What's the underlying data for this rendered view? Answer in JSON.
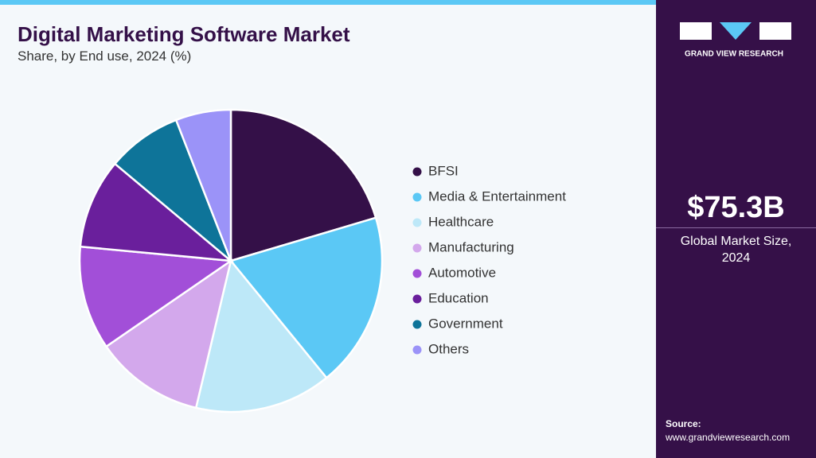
{
  "chart_data": {
    "type": "pie",
    "title": "Digital Marketing Software Market",
    "subtitle": "Share, by End use, 2024 (%)",
    "categories": [
      "BFSI",
      "Media & Entertainment",
      "Healthcare",
      "Manufacturing",
      "Automotive",
      "Education",
      "Government",
      "Others"
    ],
    "values": [
      20.4,
      18.7,
      14.6,
      11.7,
      11.1,
      9.6,
      8.0,
      5.9
    ],
    "colors": [
      "#341048",
      "#5bc8f5",
      "#bde8f8",
      "#d3a8ec",
      "#a24fd8",
      "#6a1f9c",
      "#0e7499",
      "#9b93f8"
    ]
  },
  "sidebar": {
    "brand": "GRAND VIEW RESEARCH",
    "market_size": "$75.3B",
    "market_label": "Global Market Size, 2024",
    "source_label": "Source:",
    "source_url": "www.grandviewresearch.com"
  }
}
